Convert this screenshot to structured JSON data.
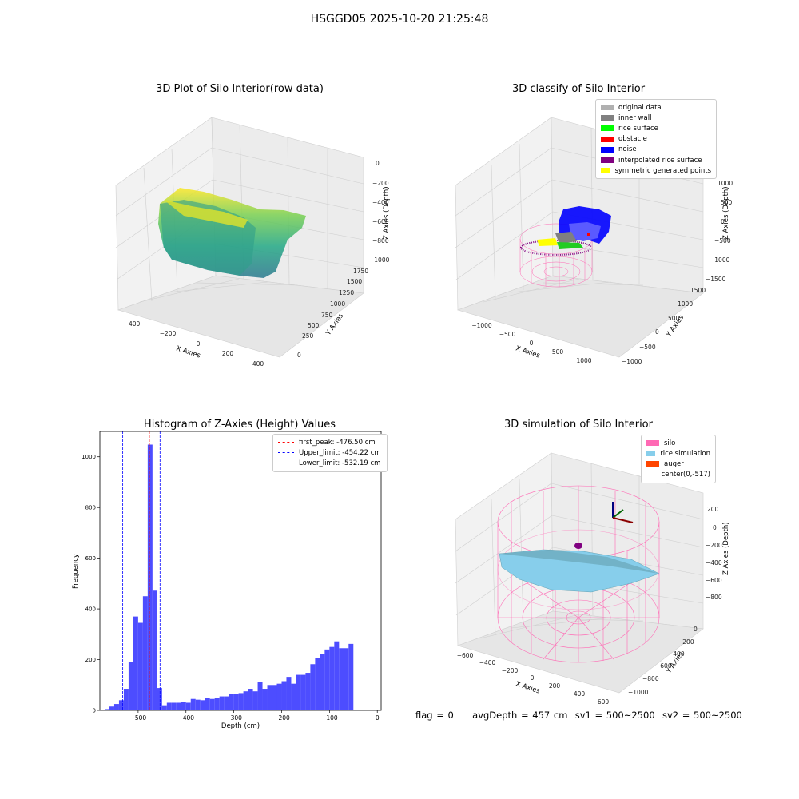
{
  "figure": {
    "title": "HSGGD05 2025-10-20 21:25:48",
    "status": {
      "flag": "flag = 0",
      "avg_depth": "avgDepth = 457 cm",
      "sv1": "sv1 = 500~2500",
      "sv2": "sv2 = 500~2500"
    }
  },
  "chart_data": [
    {
      "type": "scatter",
      "title": "3D Plot of Silo Interior(row data)",
      "xlabel": "X Axies",
      "ylabel": "Y Axies",
      "zlabel": "Z Axies (Depth)",
      "x_ticks": [
        "−400",
        "−200",
        "0",
        "200",
        "400"
      ],
      "y_ticks": [
        "0",
        "250",
        "500",
        "750",
        "1000",
        "1250",
        "1500",
        "1750"
      ],
      "z_ticks": [
        "0",
        "−200",
        "−400",
        "−600",
        "−800",
        "−1000"
      ],
      "colormap": "viridis",
      "grid": true
    },
    {
      "type": "scatter",
      "title": "3D classify of Silo Interior",
      "xlabel": "X Axies",
      "ylabel": "Y Axies",
      "zlabel": "Z Axies (Depth)",
      "x_ticks": [
        "−1000",
        "−500",
        "0",
        "500",
        "1000"
      ],
      "y_ticks": [
        "−1000",
        "−500",
        "0",
        "500",
        "1000",
        "1500"
      ],
      "z_ticks": [
        "1000",
        "500",
        "0",
        "−500",
        "−1000",
        "−1500"
      ],
      "legend_position": "top-right",
      "legend": [
        {
          "label": "original data",
          "color": "#b0b0b0"
        },
        {
          "label": "inner wall",
          "color": "#808080"
        },
        {
          "label": "rice surface",
          "color": "#00ff00"
        },
        {
          "label": "obstacle",
          "color": "#ff0000"
        },
        {
          "label": "noise",
          "color": "#0000ff"
        },
        {
          "label": "interpolated rice surface",
          "color": "#800080"
        },
        {
          "label": "symmetric generated points",
          "color": "#ffff00"
        }
      ],
      "grid": true
    },
    {
      "type": "bar",
      "title": "Histogram of Z-Axies (Height) Values",
      "xlabel": "Depth (cm)",
      "ylabel": "Frequency",
      "xlim": [
        -580,
        8
      ],
      "ylim": [
        0,
        1100
      ],
      "x_ticks": [
        -500,
        -400,
        -300,
        -200,
        -100,
        0
      ],
      "y_ticks": [
        0,
        200,
        400,
        600,
        800,
        1000
      ],
      "bin_width": 10,
      "bins": [
        {
          "left": -570,
          "count": 5
        },
        {
          "left": -560,
          "count": 15
        },
        {
          "left": -550,
          "count": 25
        },
        {
          "left": -540,
          "count": 40
        },
        {
          "left": -530,
          "count": 85
        },
        {
          "left": -520,
          "count": 190
        },
        {
          "left": -510,
          "count": 370
        },
        {
          "left": -500,
          "count": 345
        },
        {
          "left": -490,
          "count": 450
        },
        {
          "left": -480,
          "count": 1048
        },
        {
          "left": -470,
          "count": 472
        },
        {
          "left": -460,
          "count": 88
        },
        {
          "left": -450,
          "count": 20
        },
        {
          "left": -440,
          "count": 30
        },
        {
          "left": -430,
          "count": 30
        },
        {
          "left": -420,
          "count": 30
        },
        {
          "left": -410,
          "count": 32
        },
        {
          "left": -400,
          "count": 30
        },
        {
          "left": -390,
          "count": 45
        },
        {
          "left": -380,
          "count": 42
        },
        {
          "left": -370,
          "count": 40
        },
        {
          "left": -360,
          "count": 50
        },
        {
          "left": -350,
          "count": 45
        },
        {
          "left": -340,
          "count": 48
        },
        {
          "left": -330,
          "count": 55
        },
        {
          "left": -320,
          "count": 55
        },
        {
          "left": -310,
          "count": 65
        },
        {
          "left": -300,
          "count": 65
        },
        {
          "left": -290,
          "count": 68
        },
        {
          "left": -280,
          "count": 75
        },
        {
          "left": -270,
          "count": 85
        },
        {
          "left": -260,
          "count": 75
        },
        {
          "left": -250,
          "count": 112
        },
        {
          "left": -240,
          "count": 85
        },
        {
          "left": -230,
          "count": 100
        },
        {
          "left": -220,
          "count": 100
        },
        {
          "left": -210,
          "count": 105
        },
        {
          "left": -200,
          "count": 115
        },
        {
          "left": -190,
          "count": 132
        },
        {
          "left": -180,
          "count": 105
        },
        {
          "left": -170,
          "count": 140
        },
        {
          "left": -160,
          "count": 140
        },
        {
          "left": -150,
          "count": 148
        },
        {
          "left": -140,
          "count": 182
        },
        {
          "left": -130,
          "count": 205
        },
        {
          "left": -120,
          "count": 222
        },
        {
          "left": -110,
          "count": 240
        },
        {
          "left": -100,
          "count": 250
        },
        {
          "left": -90,
          "count": 272
        },
        {
          "left": -80,
          "count": 245
        },
        {
          "left": -70,
          "count": 245
        },
        {
          "left": -60,
          "count": 262
        }
      ],
      "bin_offset": 55,
      "vlines": [
        {
          "label": "first_peak: -476.50 cm",
          "x": -476.5,
          "color": "#ff0000"
        },
        {
          "label": "Upper_limit: -454.22 cm",
          "x": -454.22,
          "color": "#0000ff"
        },
        {
          "label": "Lower_limit: -532.19 cm",
          "x": -532.19,
          "color": "#0000ff"
        }
      ],
      "bar_color": "#4d4dff",
      "legend_position": "top-right"
    },
    {
      "type": "surface",
      "title": "3D simulation of Silo Interior",
      "xlabel": "X Axies",
      "ylabel": "Y Axies",
      "zlabel": "Z Axies (Depth)",
      "x_ticks": [
        "−600",
        "−400",
        "−200",
        "0",
        "200",
        "400",
        "600"
      ],
      "y_ticks": [
        "0",
        "−200",
        "−400",
        "−600",
        "−800",
        "−1000"
      ],
      "z_ticks": [
        "200",
        "0",
        "−200",
        "−400",
        "−600",
        "−800"
      ],
      "legend_position": "top-right",
      "legend": [
        {
          "label": "silo",
          "color": "#ff69b4"
        },
        {
          "label": "rice simulation",
          "color": "#87ceeb"
        },
        {
          "label": "auger",
          "color": "#ff4500"
        },
        {
          "label": "center(0,-517)",
          "color": ""
        }
      ],
      "grid": true
    }
  ]
}
